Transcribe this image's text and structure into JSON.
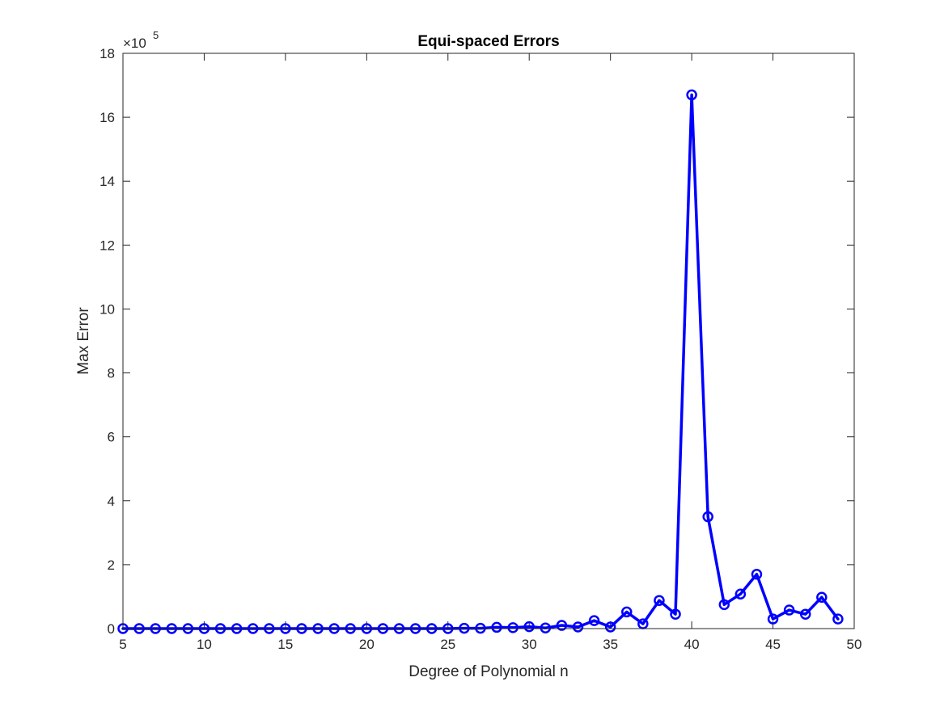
{
  "chart_data": {
    "type": "line",
    "title": "Equi-spaced Errors",
    "xlabel": "Degree of Polynomial n",
    "ylabel": "Max Error",
    "xlim": [
      5,
      50
    ],
    "ylim": [
      0,
      18
    ],
    "y_multiplier": "×10",
    "y_multiplier_exponent": "5",
    "x_ticks": [
      5,
      10,
      15,
      20,
      25,
      30,
      35,
      40,
      45,
      50
    ],
    "y_ticks": [
      0,
      2,
      4,
      6,
      8,
      10,
      12,
      14,
      16,
      18
    ],
    "grid": false,
    "legend": "none",
    "line_color": "#0000ff",
    "marker": "circle",
    "series": [
      {
        "x": [
          5,
          6,
          7,
          8,
          9,
          10,
          11,
          12,
          13,
          14,
          15,
          16,
          17,
          18,
          19,
          20,
          21,
          22,
          23,
          24,
          25,
          26,
          27,
          28,
          29,
          30,
          31,
          32,
          33,
          34,
          35,
          36,
          37,
          38,
          39,
          40,
          41,
          42,
          43,
          44,
          45,
          46,
          47,
          48,
          49
        ],
        "values": [
          0,
          0,
          0,
          0,
          0,
          0,
          0,
          0,
          0,
          0,
          0,
          0,
          0,
          0,
          0,
          0,
          0,
          0,
          0,
          0,
          0,
          0.01,
          0.01,
          0.04,
          0.03,
          0.06,
          0.02,
          0.1,
          0.05,
          0.25,
          0.05,
          0.52,
          0.15,
          0.88,
          0.45,
          16.7,
          3.5,
          0.75,
          1.08,
          1.7,
          0.3,
          0.58,
          0.45,
          0.98,
          0.3
        ]
      }
    ]
  }
}
